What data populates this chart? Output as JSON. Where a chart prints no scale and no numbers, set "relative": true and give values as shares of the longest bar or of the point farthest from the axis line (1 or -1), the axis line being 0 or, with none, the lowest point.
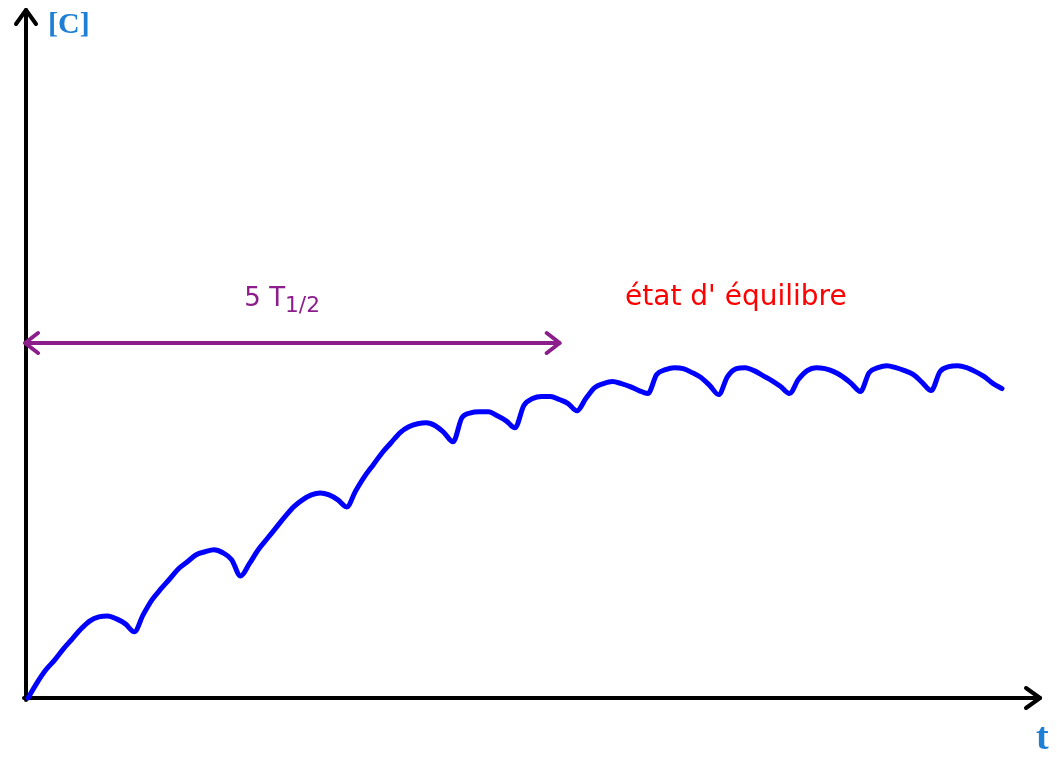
{
  "chart_data": {
    "type": "line",
    "xlabel": "t",
    "relative": true,
    "line_style": "solid",
    "annotations": [
      "[C]",
      "5 T$_{1/2}$",
      "état d' équilibre"
    ],
    "categories": [
      null,
      null,
      null,
      null,
      null,
      null,
      null,
      null,
      null,
      null,
      null,
      null,
      null,
      null,
      null,
      null,
      null,
      null,
      null,
      null,
      null,
      null,
      null,
      null,
      null,
      null,
      null,
      null,
      null,
      null,
      null,
      null,
      null,
      null,
      null,
      null,
      null,
      null,
      null,
      null,
      null,
      null,
      null,
      null,
      null,
      null,
      null,
      null,
      null,
      null,
      null,
      null,
      null,
      null,
      null,
      null,
      null,
      null,
      null,
      null,
      null,
      null,
      null,
      null,
      null,
      null,
      null,
      null,
      null,
      null,
      null,
      null,
      null,
      null,
      null,
      null,
      null,
      null,
      null,
      null,
      null,
      null,
      null,
      null,
      null,
      null,
      null,
      null,
      null,
      null,
      null,
      null,
      null,
      null,
      null,
      null,
      null,
      null,
      null,
      null,
      null,
      null,
      null,
      null,
      null,
      null,
      null,
      null,
      null,
      null,
      null
    ],
    "series": [
      {
        "color": "#0000ff",
        "values": [
          0,
          0.045,
          0.084,
          0.114,
          0.148,
          0.178,
          0.208,
          0.232,
          0.244,
          0.247,
          0.238,
          0.223,
          0.199,
          0.25,
          0.295,
          0.328,
          0.358,
          0.389,
          0.41,
          0.431,
          0.44,
          0.446,
          0.437,
          0.416,
          0.367,
          0.404,
          0.446,
          0.479,
          0.512,
          0.545,
          0.575,
          0.596,
          0.611,
          0.617,
          0.611,
          0.596,
          0.575,
          0.623,
          0.666,
          0.702,
          0.738,
          0.768,
          0.798,
          0.816,
          0.825,
          0.828,
          0.819,
          0.798,
          0.771,
          0.843,
          0.858,
          0.861,
          0.861,
          0.849,
          0.834,
          0.813,
          0.88,
          0.901,
          0.907,
          0.907,
          0.898,
          0.886,
          0.864,
          0.901,
          0.934,
          0.946,
          0.952,
          0.946,
          0.937,
          0.925,
          0.916,
          0.973,
          0.988,
          0.994,
          0.991,
          0.979,
          0.964,
          0.94,
          0.913,
          0.967,
          0.991,
          0.994,
          0.985,
          0.97,
          0.955,
          0.937,
          0.916,
          0.958,
          0.985,
          0.994,
          0.991,
          0.982,
          0.967,
          0.946,
          0.922,
          0.979,
          0.994,
          1,
          0.994,
          0.985,
          0.973,
          0.949,
          0.925,
          0.982,
          0.997,
          1,
          0.994,
          0.982,
          0.967,
          0.946,
          0.931
        ]
      }
    ]
  }
}
